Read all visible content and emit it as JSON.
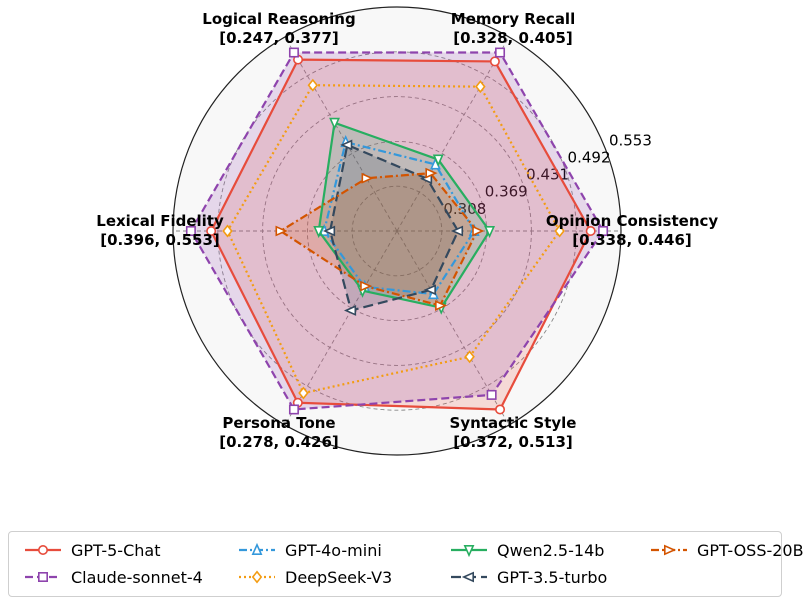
{
  "chart_data": {
    "type": "radar",
    "axes": [
      {
        "name": "Opinion Consistency",
        "range_label": "[0.338, 0.446]",
        "min": 0.338,
        "max": 0.446
      },
      {
        "name": "Memory Recall",
        "range_label": "[0.328, 0.405]",
        "min": 0.328,
        "max": 0.405
      },
      {
        "name": "Logical Reasoning",
        "range_label": "[0.247, 0.377]",
        "min": 0.247,
        "max": 0.377
      },
      {
        "name": "Lexical Fidelity",
        "range_label": "[0.396, 0.553]",
        "min": 0.396,
        "max": 0.553
      },
      {
        "name": "Persona Tone",
        "range_label": "[0.278, 0.426]",
        "min": 0.278,
        "max": 0.426
      },
      {
        "name": "Syntactic Style",
        "range_label": "[0.372, 0.513]",
        "min": 0.372,
        "max": 0.513
      }
    ],
    "radial_ticks": [
      "0.308",
      "0.369",
      "0.431",
      "0.492",
      "0.553"
    ],
    "grid": true,
    "legend_position": "bottom",
    "series": [
      {
        "name": "GPT-5-Chat",
        "color": "#e74c3c",
        "dash": "solid",
        "marker": "circle",
        "fill": true,
        "values": [
          0.4377,
          0.4001,
          0.3704,
          0.5333,
          0.4189,
          0.513
        ]
      },
      {
        "name": "Claude-sonnet-4",
        "color": "#8e44ad",
        "dash": "dashed",
        "marker": "square",
        "fill": true,
        "values": [
          0.446,
          0.405,
          0.377,
          0.553,
          0.426,
          0.4983
        ]
      },
      {
        "name": "DeepSeek-V3",
        "color": "#f39c12",
        "dash": "dotted",
        "marker": "diamond",
        "fill": false,
        "values": [
          0.4169,
          0.3862,
          0.3466,
          0.5174,
          0.4086,
          0.4598
        ]
      },
      {
        "name": "GPT-4o-mini",
        "color": "#3498db",
        "dash": "dashdot",
        "marker": "triangle-up",
        "fill": false,
        "values": [
          0.3597,
          0.3433,
          0.2936,
          0.4233,
          0.2961,
          0.3965
        ]
      },
      {
        "name": "Qwen2.5-14b",
        "color": "#27ae60",
        "dash": "solid",
        "marker": "triangle-down",
        "fill": true,
        "values": [
          0.37,
          0.346,
          0.3116,
          0.4286,
          0.3001,
          0.4102
        ]
      },
      {
        "name": "GPT-3.5-turbo",
        "color": "#34495e",
        "dash": "longdash",
        "marker": "triangle-left",
        "fill": true,
        "values": [
          0.3489,
          0.3354,
          0.291,
          0.4175,
          0.3211,
          0.3922
        ]
      },
      {
        "name": "GPT-OSS-20B",
        "color": "#d35400",
        "dash": "dashdot",
        "marker": "triangle-right",
        "fill": true,
        "values": [
          0.3617,
          0.3385,
          0.26,
          0.4658,
          0.2953,
          0.4081
        ]
      }
    ]
  }
}
